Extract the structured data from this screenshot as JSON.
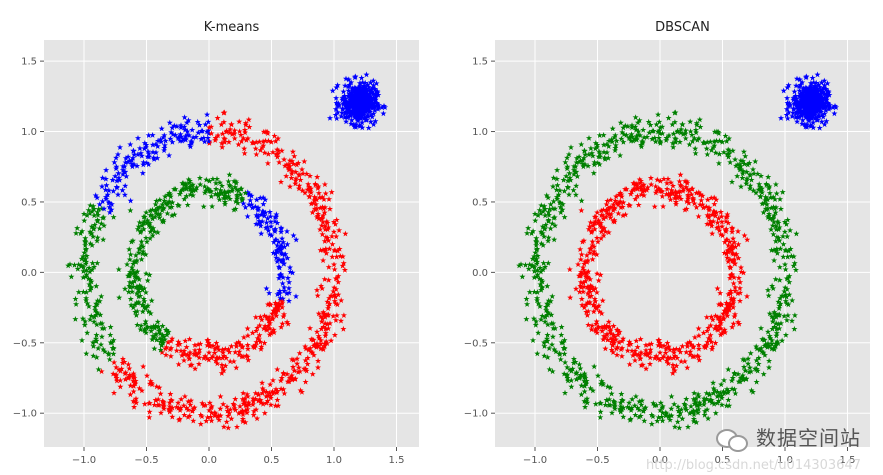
{
  "figure": {
    "background": "#ffffff",
    "axes_face": "#e5e5e5",
    "grid_color": "#ffffff"
  },
  "chart_data": [
    {
      "type": "scatter",
      "title": "K-means",
      "xlabel": "",
      "ylabel": "",
      "xlim": [
        -1.32,
        1.68
      ],
      "ylim": [
        -1.24,
        1.65
      ],
      "xticks": [
        "−1.0",
        "−0.5",
        "0.0",
        "0.5",
        "1.0",
        "1.5"
      ],
      "xtick_values": [
        -1.0,
        -0.5,
        0.0,
        0.5,
        1.0,
        1.5
      ],
      "yticks": [
        "1.5",
        "1.0",
        "0.5",
        "0.0",
        "−0.5",
        "−1.0"
      ],
      "ytick_values": [
        1.5,
        1.0,
        0.5,
        0.0,
        -0.5,
        -1.0
      ],
      "grid": true,
      "marker": "star",
      "clusters": [
        {
          "shape": "ring",
          "center": [
            0,
            0
          ],
          "radius": 1.0,
          "spread": 0.055,
          "n": 850,
          "colors": [
            {
              "from_deg": 90,
              "to_deg": 152,
              "color": "#0000ff"
            },
            {
              "from_deg": 152,
              "to_deg": 218,
              "color": "#008000"
            }
          ],
          "default_color": "#ff0000"
        },
        {
          "shape": "ring",
          "center": [
            0,
            0
          ],
          "radius": 0.6,
          "spread": 0.05,
          "n": 600,
          "colors": [
            {
              "from_deg": -18,
              "to_deg": 62,
              "color": "#0000ff"
            },
            {
              "from_deg": 62,
              "to_deg": 236,
              "color": "#008000"
            }
          ],
          "default_color": "#ff0000"
        },
        {
          "shape": "blob",
          "center": [
            1.2,
            1.2
          ],
          "spread": 0.07,
          "n": 450,
          "default_color": "#0000ff"
        }
      ]
    },
    {
      "type": "scatter",
      "title": "DBSCAN",
      "xlabel": "",
      "ylabel": "",
      "xlim": [
        -1.32,
        1.68
      ],
      "ylim": [
        -1.24,
        1.65
      ],
      "xticks": [
        "−1.0",
        "−0.5",
        "0.0",
        "0.5",
        "1.0",
        "1.5"
      ],
      "xtick_values": [
        -1.0,
        -0.5,
        0.0,
        0.5,
        1.0,
        1.5
      ],
      "yticks": [
        "1.5",
        "1.0",
        "0.5",
        "0.0",
        "−0.5",
        "−1.0"
      ],
      "ytick_values": [
        1.5,
        1.0,
        0.5,
        0.0,
        -0.5,
        -1.0
      ],
      "grid": true,
      "marker": "star",
      "clusters": [
        {
          "shape": "ring",
          "center": [
            0,
            0
          ],
          "radius": 1.0,
          "spread": 0.055,
          "n": 850,
          "default_color": "#008000"
        },
        {
          "shape": "ring",
          "center": [
            0,
            0
          ],
          "radius": 0.6,
          "spread": 0.05,
          "n": 600,
          "default_color": "#ff0000"
        },
        {
          "shape": "blob",
          "center": [
            1.2,
            1.2
          ],
          "spread": 0.07,
          "n": 450,
          "default_color": "#0000ff"
        }
      ]
    }
  ],
  "watermark": {
    "text_cn": "数据空间站",
    "url": "http://blog.csdn.net/u014303647"
  }
}
